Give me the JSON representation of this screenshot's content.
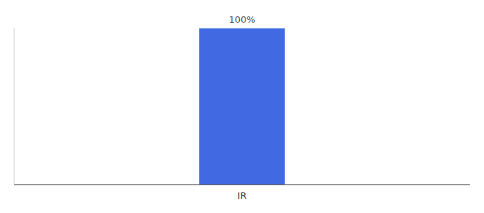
{
  "chart_data": {
    "type": "bar",
    "categories": [
      "IR"
    ],
    "values": [
      100
    ],
    "value_labels": [
      "100%"
    ],
    "data_labels": true,
    "color": "#4169E1",
    "ylim": [
      0,
      100
    ],
    "yticks": [],
    "tick_labels": "x",
    "grid": false
  }
}
